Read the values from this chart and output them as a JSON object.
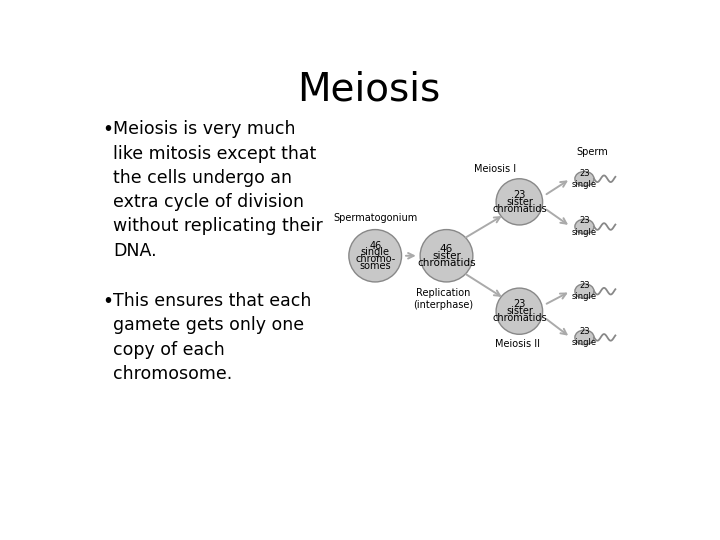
{
  "title": "Meiosis",
  "title_fontsize": 28,
  "bullet_fontsize": 12.5,
  "bg_color": "#ffffff",
  "text_color": "#000000",
  "circle_fill": "#c8c8c8",
  "circle_edge": "#888888",
  "arrow_color": "#aaaaaa",
  "bullet1": "Meiosis is very much\nlike mitosis except that\nthe cells undergo an\nextra cycle of division\nwithout replicating their\nDNA.",
  "bullet2": "This ensures that each\ngamete gets only one\ncopy of each\nchromosome.",
  "spermatogonium_label": "Spermatogonium",
  "replication_label": "Replication\n(interphase)",
  "meiosis1_label": "Meiosis I",
  "meiosis2_label": "Meiosis II",
  "sperm_label": "Sperm",
  "circle1_text": [
    "46",
    "single",
    "chromo-",
    "somes"
  ],
  "circle2_text": [
    "46",
    "sister",
    "chromatids"
  ],
  "circle3_text": [
    "23",
    "sister",
    "chromatids"
  ],
  "circle4_text": [
    "23",
    "sister",
    "chromatids"
  ],
  "sperm_text": "23\nsingle"
}
